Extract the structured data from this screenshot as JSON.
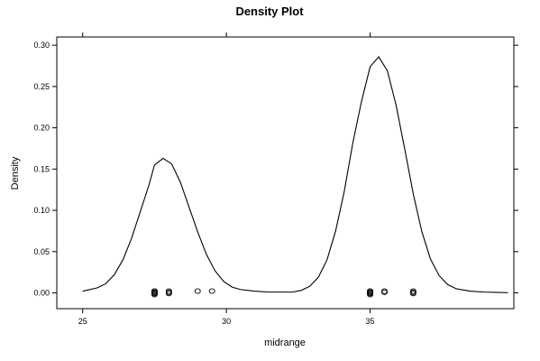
{
  "chart_data": {
    "type": "line",
    "title": "Density Plot",
    "xlabel": "midrange",
    "ylabel": "Density",
    "xlim": [
      24.1,
      40.0
    ],
    "ylim": [
      -0.0191,
      0.31
    ],
    "x_ticks": [
      25,
      30,
      35
    ],
    "x_tick_labels": [
      "25",
      "30",
      "35"
    ],
    "y_ticks": [
      0.0,
      0.05,
      0.1,
      0.15,
      0.2,
      0.25,
      0.3
    ],
    "y_tick_labels": [
      "0.00",
      "0.05",
      "0.10",
      "0.15",
      "0.20",
      "0.25",
      "0.30"
    ],
    "grid": false,
    "series": [
      {
        "x": [
          25.0,
          25.5,
          25.8,
          26.1,
          26.4,
          26.7,
          27.0,
          27.3,
          27.5,
          27.8,
          28.1,
          28.4,
          28.7,
          29.0,
          29.3,
          29.6,
          29.9,
          30.2,
          30.5,
          31.0,
          31.5,
          32.0,
          32.3,
          32.6,
          32.9,
          33.2,
          33.5,
          33.8,
          34.1,
          34.4,
          34.7,
          35.0,
          35.3,
          35.6,
          35.9,
          36.2,
          36.5,
          36.8,
          37.1,
          37.4,
          37.7,
          38.0,
          38.5,
          39.0,
          39.5,
          39.8
        ],
        "y": [
          0.002,
          0.006,
          0.011,
          0.022,
          0.04,
          0.066,
          0.098,
          0.13,
          0.155,
          0.163,
          0.156,
          0.134,
          0.104,
          0.074,
          0.047,
          0.027,
          0.014,
          0.007,
          0.004,
          0.002,
          0.001,
          0.001,
          0.001,
          0.003,
          0.008,
          0.019,
          0.04,
          0.075,
          0.123,
          0.182,
          0.232,
          0.274,
          0.286,
          0.269,
          0.228,
          0.175,
          0.12,
          0.074,
          0.041,
          0.021,
          0.01,
          0.005,
          0.002,
          0.001,
          0.0005,
          0.0003
        ]
      }
    ],
    "rug_points": [
      27.5,
      27.5,
      27.5,
      27.5,
      27.5,
      27.5,
      27.5,
      28.0,
      28.0,
      28.0,
      29.0,
      29.5,
      35.0,
      35.0,
      35.0,
      35.0,
      35.0,
      35.0,
      35.0,
      35.5,
      35.5,
      36.5,
      36.5,
      36.5
    ]
  }
}
